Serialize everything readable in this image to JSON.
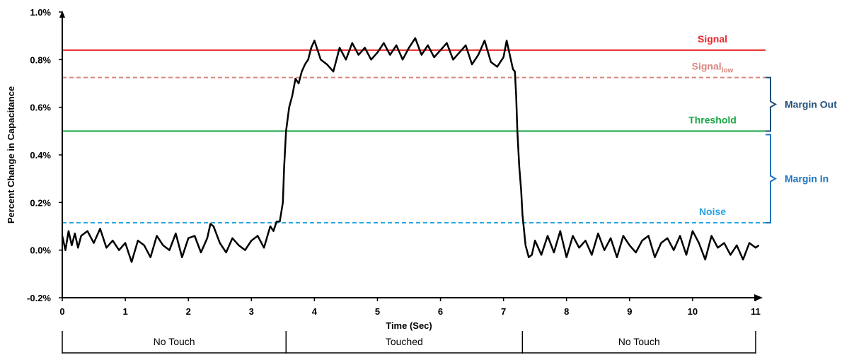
{
  "chart_data": {
    "type": "line",
    "title": "",
    "xlabel": "Time (Sec)",
    "ylabel": "Percent Change in Capacitance",
    "xlim": [
      0,
      11
    ],
    "ylim": [
      -0.2,
      1.0
    ],
    "x_ticks": [
      "0",
      "1",
      "2",
      "3",
      "4",
      "5",
      "6",
      "7",
      "8",
      "9",
      "10",
      "11"
    ],
    "y_ticks": [
      "-0.2%",
      "0.0%",
      "0.2%",
      "0.4%",
      "0.6%",
      "0.8%",
      "1.0%"
    ],
    "grid": false,
    "series": [
      {
        "x": [
          0,
          0.05,
          0.1,
          0.15,
          0.2,
          0.25,
          0.3,
          0.4,
          0.5,
          0.6,
          0.7,
          0.8,
          0.9,
          1.0,
          1.1,
          1.2,
          1.3,
          1.4,
          1.5,
          1.6,
          1.7,
          1.8,
          1.9,
          2.0,
          2.1,
          2.2,
          2.3,
          2.35,
          2.4,
          2.5,
          2.6,
          2.7,
          2.8,
          2.9,
          3.0,
          3.1,
          3.2,
          3.3,
          3.35,
          3.4,
          3.45,
          3.5,
          3.52,
          3.55,
          3.6,
          3.65,
          3.7,
          3.75,
          3.8,
          3.85,
          3.9,
          3.95,
          4.0,
          4.1,
          4.2,
          4.3,
          4.4,
          4.5,
          4.6,
          4.7,
          4.8,
          4.9,
          5.0,
          5.1,
          5.2,
          5.3,
          5.4,
          5.5,
          5.6,
          5.7,
          5.8,
          5.9,
          6.0,
          6.1,
          6.2,
          6.3,
          6.4,
          6.5,
          6.6,
          6.7,
          6.8,
          6.9,
          7.0,
          7.05,
          7.1,
          7.15,
          7.18,
          7.2,
          7.22,
          7.25,
          7.28,
          7.3,
          7.35,
          7.4,
          7.45,
          7.5,
          7.6,
          7.7,
          7.8,
          7.9,
          8.0,
          8.1,
          8.2,
          8.3,
          8.4,
          8.5,
          8.6,
          8.7,
          8.8,
          8.9,
          9.0,
          9.1,
          9.2,
          9.3,
          9.4,
          9.5,
          9.6,
          9.7,
          9.8,
          9.9,
          10.0,
          10.1,
          10.2,
          10.3,
          10.4,
          10.5,
          10.6,
          10.7,
          10.8,
          10.9,
          11.0,
          11.05
        ],
        "values": [
          0.06,
          0.0,
          0.08,
          0.02,
          0.07,
          0.01,
          0.06,
          0.08,
          0.03,
          0.09,
          0.01,
          0.04,
          0.0,
          0.03,
          -0.05,
          0.04,
          0.02,
          -0.03,
          0.06,
          0.02,
          0.0,
          0.07,
          -0.03,
          0.05,
          0.06,
          -0.01,
          0.05,
          0.11,
          0.1,
          0.03,
          -0.01,
          0.05,
          0.02,
          0.0,
          0.04,
          0.06,
          0.01,
          0.1,
          0.08,
          0.12,
          0.12,
          0.2,
          0.35,
          0.5,
          0.6,
          0.65,
          0.72,
          0.7,
          0.75,
          0.78,
          0.8,
          0.85,
          0.88,
          0.8,
          0.78,
          0.75,
          0.85,
          0.8,
          0.87,
          0.82,
          0.85,
          0.8,
          0.83,
          0.87,
          0.82,
          0.86,
          0.8,
          0.85,
          0.89,
          0.82,
          0.86,
          0.81,
          0.84,
          0.87,
          0.8,
          0.83,
          0.86,
          0.78,
          0.82,
          0.88,
          0.79,
          0.77,
          0.81,
          0.88,
          0.82,
          0.76,
          0.75,
          0.65,
          0.5,
          0.35,
          0.25,
          0.15,
          0.02,
          -0.03,
          -0.02,
          0.04,
          -0.02,
          0.06,
          -0.01,
          0.08,
          -0.03,
          0.06,
          0.01,
          0.04,
          -0.02,
          0.07,
          0.0,
          0.05,
          -0.03,
          0.06,
          0.02,
          -0.01,
          0.04,
          0.06,
          -0.03,
          0.03,
          0.05,
          0.0,
          0.06,
          -0.02,
          0.08,
          0.03,
          -0.04,
          0.06,
          0.01,
          0.03,
          -0.02,
          0.02,
          -0.04,
          0.03,
          0.01,
          0.02
        ]
      }
    ],
    "reference_lines": [
      {
        "key": "signal",
        "y": 0.84,
        "label": "Signal",
        "sub": "",
        "color": "#e8262a",
        "dash": false
      },
      {
        "key": "signal_low",
        "y": 0.725,
        "label": "Signal",
        "sub": "low",
        "color": "#d98880",
        "dash": true
      },
      {
        "key": "threshold",
        "y": 0.5,
        "label": "Threshold",
        "color": "#1ba646",
        "dash": false
      },
      {
        "key": "noise",
        "y": 0.115,
        "label": "Noise",
        "color": "#2aa4e0",
        "dash": true
      }
    ],
    "brackets": [
      {
        "key": "margin-out",
        "label": "Margin Out",
        "y_top": 0.725,
        "y_bottom": 0.5,
        "color": "#1f4e79"
      },
      {
        "key": "margin-in",
        "label": "Margin In",
        "y_top": 0.485,
        "y_bottom": 0.115,
        "color": "#1e73be"
      }
    ],
    "phases": [
      {
        "label": "No Touch",
        "from": 0,
        "to": 3.55
      },
      {
        "label": "Touched",
        "from": 3.55,
        "to": 7.3
      },
      {
        "label": "No Touch",
        "from": 7.3,
        "to": 11
      }
    ]
  }
}
